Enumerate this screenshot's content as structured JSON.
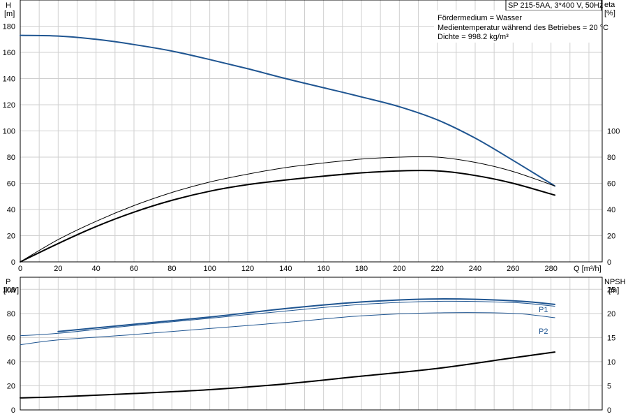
{
  "header": {
    "pump_label": "SP 215-5AA, 3*400 V, 50Hz",
    "info": [
      "Fördermedium = Wasser",
      "Medientemperatur während des Betriebes = 20 °C",
      "Dichte = 998.2 kg/m³"
    ]
  },
  "chart_data": [
    {
      "type": "line",
      "id": "head-efficiency",
      "xlabel": "Q [m³/h]",
      "x_ticks": [
        0,
        20,
        40,
        60,
        80,
        100,
        120,
        140,
        160,
        180,
        200,
        220,
        240,
        260,
        280
      ],
      "xlim": [
        0,
        307
      ],
      "y_left": {
        "label": [
          "H",
          "[m]"
        ],
        "ticks": [
          0,
          20,
          40,
          60,
          80,
          100,
          120,
          140,
          160,
          180
        ],
        "ylim": [
          0,
          200
        ]
      },
      "y_right": {
        "label": [
          "eta",
          "[%]"
        ],
        "ticks": [
          0,
          20,
          40,
          60,
          80,
          100
        ],
        "ylim": [
          0,
          200
        ]
      },
      "grid": true,
      "series": [
        {
          "key": "H",
          "axis": "left",
          "color": "#1f5591",
          "width": 2,
          "x": [
            0,
            20,
            40,
            60,
            80,
            100,
            120,
            140,
            160,
            180,
            200,
            220,
            240,
            260,
            282
          ],
          "y": [
            173,
            172.5,
            170,
            166,
            161,
            154.5,
            147.5,
            140,
            133,
            126,
            118.5,
            108.5,
            94.5,
            77.5,
            58
          ]
        },
        {
          "key": "eta_thin",
          "axis": "right",
          "color": "#000000",
          "width": 1,
          "x": [
            0,
            20,
            40,
            60,
            80,
            100,
            120,
            140,
            160,
            180,
            200,
            220,
            240,
            260,
            282
          ],
          "y": [
            0,
            17,
            31,
            43,
            53,
            61,
            67,
            72,
            75.5,
            78.5,
            80,
            80,
            76,
            69,
            58
          ]
        },
        {
          "key": "eta_thick",
          "axis": "right",
          "color": "#000000",
          "width": 2,
          "x": [
            0,
            20,
            40,
            60,
            80,
            100,
            120,
            140,
            160,
            180,
            200,
            220,
            240,
            260,
            282
          ],
          "y": [
            0,
            14,
            27,
            38,
            47,
            54,
            59,
            62.5,
            65.5,
            68,
            69.5,
            69.5,
            66,
            60,
            51
          ]
        }
      ]
    },
    {
      "type": "line",
      "id": "power-npsh",
      "xlim": [
        0,
        307
      ],
      "y_left": {
        "label": [
          "P",
          "[kW]"
        ],
        "ticks": [
          0,
          20,
          40,
          60,
          80,
          100
        ],
        "ylim": [
          0,
          110
        ]
      },
      "y_right": {
        "label": [
          "NPSH",
          "[m]"
        ],
        "ticks": [
          0,
          5,
          10,
          15,
          20,
          25
        ],
        "ylim": [
          0,
          27.5
        ]
      },
      "grid": true,
      "series": [
        {
          "key": "P1",
          "name": "P1",
          "axis": "left",
          "color": "#1f5591",
          "width": 2,
          "x": [
            20,
            60,
            100,
            140,
            180,
            220,
            260,
            282
          ],
          "y": [
            65,
            71,
            77,
            84,
            89.5,
            92,
            90.5,
            87.5
          ]
        },
        {
          "key": "P2",
          "name": "P2",
          "axis": "left",
          "color": "#1f5591",
          "width": 1,
          "x": [
            0,
            20,
            60,
            100,
            140,
            180,
            220,
            260,
            282
          ],
          "y": [
            61.5,
            63.5,
            70,
            76,
            82,
            87.5,
            90,
            89,
            86
          ]
        },
        {
          "key": "P2_lower",
          "axis": "left",
          "color": "#1f5591",
          "width": 1,
          "x": [
            0,
            20,
            60,
            100,
            140,
            180,
            220,
            260,
            282
          ],
          "y": [
            54,
            58,
            62.5,
            67.5,
            72.5,
            78,
            80.5,
            80,
            76.5
          ]
        },
        {
          "key": "NPSH",
          "axis": "right",
          "color": "#000000",
          "width": 2,
          "x": [
            0,
            20,
            60,
            100,
            140,
            180,
            220,
            260,
            282
          ],
          "y": [
            2.5,
            2.7,
            3.4,
            4.2,
            5.4,
            7,
            8.6,
            10.8,
            12
          ]
        }
      ]
    }
  ]
}
